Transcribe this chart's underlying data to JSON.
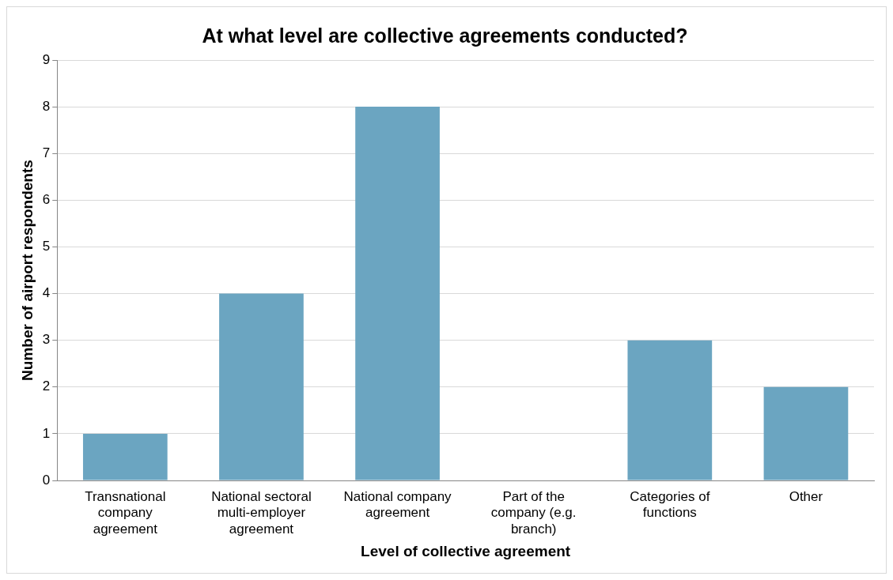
{
  "chart_data": {
    "type": "bar",
    "title": "At what level are collective agreements conducted?",
    "xlabel": "Level of collective agreement",
    "ylabel": "Number of airport respondents",
    "categories": [
      "Transnational company agreement",
      "National sectoral multi-employer agreement",
      "National company agreement",
      "Part of the company (e.g. branch)",
      "Categories of functions",
      "Other"
    ],
    "values": [
      1,
      4,
      8,
      0,
      3,
      2
    ],
    "color": "#6ba5c1",
    "ylim": [
      0,
      9
    ],
    "yticks": [
      0,
      1,
      2,
      3,
      4,
      5,
      6,
      7,
      8,
      9
    ],
    "grid": "y",
    "legend": false
  }
}
